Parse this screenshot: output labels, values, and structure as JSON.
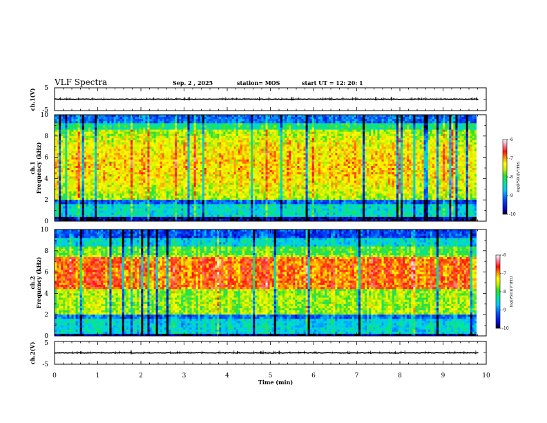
{
  "header": {
    "title": "VLF Spectra",
    "date": "Sep. 2  , 2025",
    "station": "station= MOS",
    "start": "start  UT  =   12: 20: 1"
  },
  "chart_data": [
    {
      "type": "line",
      "name": "ch1-waveform",
      "ylabel": "ch.1(V)",
      "ylim": [
        -5,
        5
      ],
      "yticks": [
        "5",
        "-5"
      ],
      "baseline": 0
    },
    {
      "type": "heatmap",
      "name": "ch1-spectrogram",
      "ylabel": "ch.1\nFrequency (kHz)",
      "ylim": [
        0,
        10
      ],
      "yticks": [
        "0",
        "2",
        "4",
        "6",
        "8",
        "10"
      ],
      "colorbar": {
        "label": "log(PSD)(V²/Hz)",
        "ticks": [
          "-6",
          "-7",
          "-8",
          "-9",
          "-10"
        ],
        "range": [
          -10,
          -6
        ]
      }
    },
    {
      "type": "heatmap",
      "name": "ch2-spectrogram",
      "ylabel": "ch.2\nFrequency (kHz)",
      "ylim": [
        0,
        10
      ],
      "yticks": [
        "0",
        "2",
        "4",
        "6",
        "8",
        "10"
      ],
      "colorbar": {
        "label": "log(PSD)(V²/Hz)",
        "ticks": [
          "-6",
          "-7",
          "-8",
          "-9",
          "-10"
        ],
        "range": [
          -10,
          -6
        ]
      }
    },
    {
      "type": "line",
      "name": "ch2-waveform",
      "ylabel": "ch.2(V)",
      "ylim": [
        -5,
        5
      ],
      "yticks": [
        "5",
        "-5"
      ],
      "baseline": 0
    }
  ],
  "xaxis": {
    "label": "Time (min)",
    "xlim": [
      0,
      10
    ],
    "ticks": [
      "0",
      "1",
      "2",
      "3",
      "4",
      "5",
      "6",
      "7",
      "8",
      "9",
      "10"
    ],
    "data_end": 9.83
  }
}
